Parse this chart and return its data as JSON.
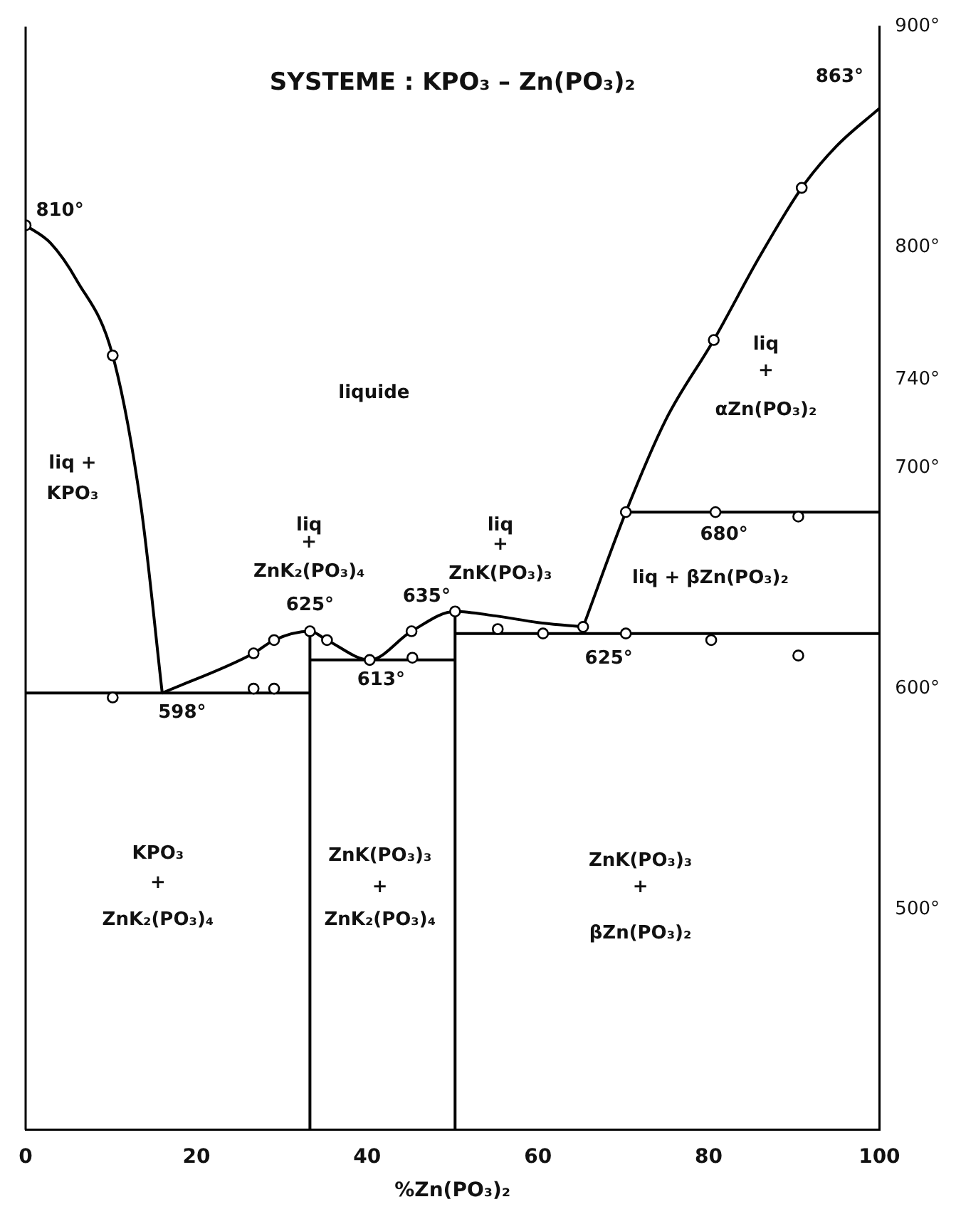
{
  "chart_data": {
    "type": "line",
    "title": "SYSTEME : KPO₃ – Zn(PO₃)₂",
    "xlabel": "%Zn(PO₃)₂",
    "xlim": [
      0,
      100
    ],
    "xticks": [
      0,
      20,
      40,
      60,
      80,
      100
    ],
    "ylim": [
      400,
      900
    ],
    "yticks": [
      {
        "value": 500,
        "label": "500°"
      },
      {
        "value": 600,
        "label": "600°"
      },
      {
        "value": 700,
        "label": "700°"
      },
      {
        "value": 740,
        "label": "740°"
      },
      {
        "value": 800,
        "label": "800°"
      },
      {
        "value": 900,
        "label": "900°"
      }
    ],
    "grid": false,
    "legend": false,
    "marker": "none",
    "line_style": "solid",
    "series": [
      {
        "type": "line",
        "color": "#000000",
        "x": [
          0,
          2.9,
          6,
          10.2,
          13.5,
          16
        ],
        "values": [
          810,
          802,
          785,
          751,
          683,
          598
        ]
      },
      {
        "type": "line",
        "color": "#000000",
        "x": [
          16,
          26.7,
          29.1,
          33.3,
          35.3,
          40.3,
          45.2,
          50.3,
          55,
          60,
          65.3
        ],
        "values": [
          598,
          616,
          622,
          626,
          622,
          613,
          626,
          635,
          633,
          630,
          628
        ]
      },
      {
        "type": "line",
        "color": "#000000",
        "x": [
          65.3,
          70.3,
          75,
          80.6,
          86,
          90.9,
          95,
          100
        ],
        "values": [
          628,
          680,
          722,
          758,
          796,
          827,
          846,
          863
        ]
      },
      {
        "type": "line",
        "color": "#000000",
        "x": [
          0,
          33.3
        ],
        "values": [
          598,
          598
        ]
      },
      {
        "type": "line",
        "color": "#000000",
        "x": [
          33.3,
          50.3
        ],
        "values": [
          613,
          613
        ]
      },
      {
        "type": "line",
        "color": "#000000",
        "x": [
          50.3,
          100
        ],
        "values": [
          625,
          625
        ]
      },
      {
        "type": "line",
        "color": "#000000",
        "x": [
          70.3,
          100
        ],
        "values": [
          680,
          680
        ]
      },
      {
        "type": "line",
        "color": "#000000",
        "x": [
          33.3,
          33.3
        ],
        "values": [
          400,
          626
        ]
      },
      {
        "type": "line",
        "color": "#000000",
        "x": [
          50.3,
          50.3
        ],
        "values": [
          400,
          635
        ]
      },
      {
        "type": "scatter",
        "color": "#000000",
        "marker": "circle",
        "x": [
          0,
          10.2,
          26.7,
          29.1,
          33.3,
          35.3,
          40.3,
          45.2,
          50.3,
          55.3,
          60.6,
          65.3,
          70.3,
          80.3,
          90.5,
          10.2,
          26.7,
          29.1,
          45.3,
          70.3,
          80.8,
          90.5,
          80.6,
          90.9
        ],
        "values": [
          810,
          751,
          616,
          622,
          626,
          622,
          613,
          626,
          635,
          627,
          625,
          628,
          625,
          622,
          615,
          596,
          600,
          600,
          614,
          680,
          680,
          678,
          758,
          827
        ]
      }
    ],
    "annotations": [
      {
        "text": "810°",
        "x": 0,
        "y": 810
      },
      {
        "text": "598°",
        "x": 16,
        "y": 598
      },
      {
        "text": "625°",
        "x": 33.3,
        "y": 626
      },
      {
        "text": "613°",
        "x": 40.3,
        "y": 613
      },
      {
        "text": "635°",
        "x": 50.3,
        "y": 635
      },
      {
        "text": "625°",
        "x": 70.3,
        "y": 625
      },
      {
        "text": "680°",
        "x": 80.8,
        "y": 680
      },
      {
        "text": "863°",
        "x": 100,
        "y": 863
      },
      "liquide",
      "liq +",
      "KPO₃",
      "liq",
      "+",
      "ZnK₂(PO₃)₄",
      "liq",
      "+",
      "ZnK(PO₃)₃",
      "liq + βZn(PO₃)₂",
      "liq",
      "+",
      "αZn(PO₃)₂",
      "KPO₃",
      "+",
      "ZnK₂(PO₃)₄",
      "ZnK(PO₃)₃",
      "+",
      "ZnK₂(PO₃)₄",
      "ZnK(PO₃)₃",
      "+",
      "βZn(PO₃)₂"
    ]
  }
}
